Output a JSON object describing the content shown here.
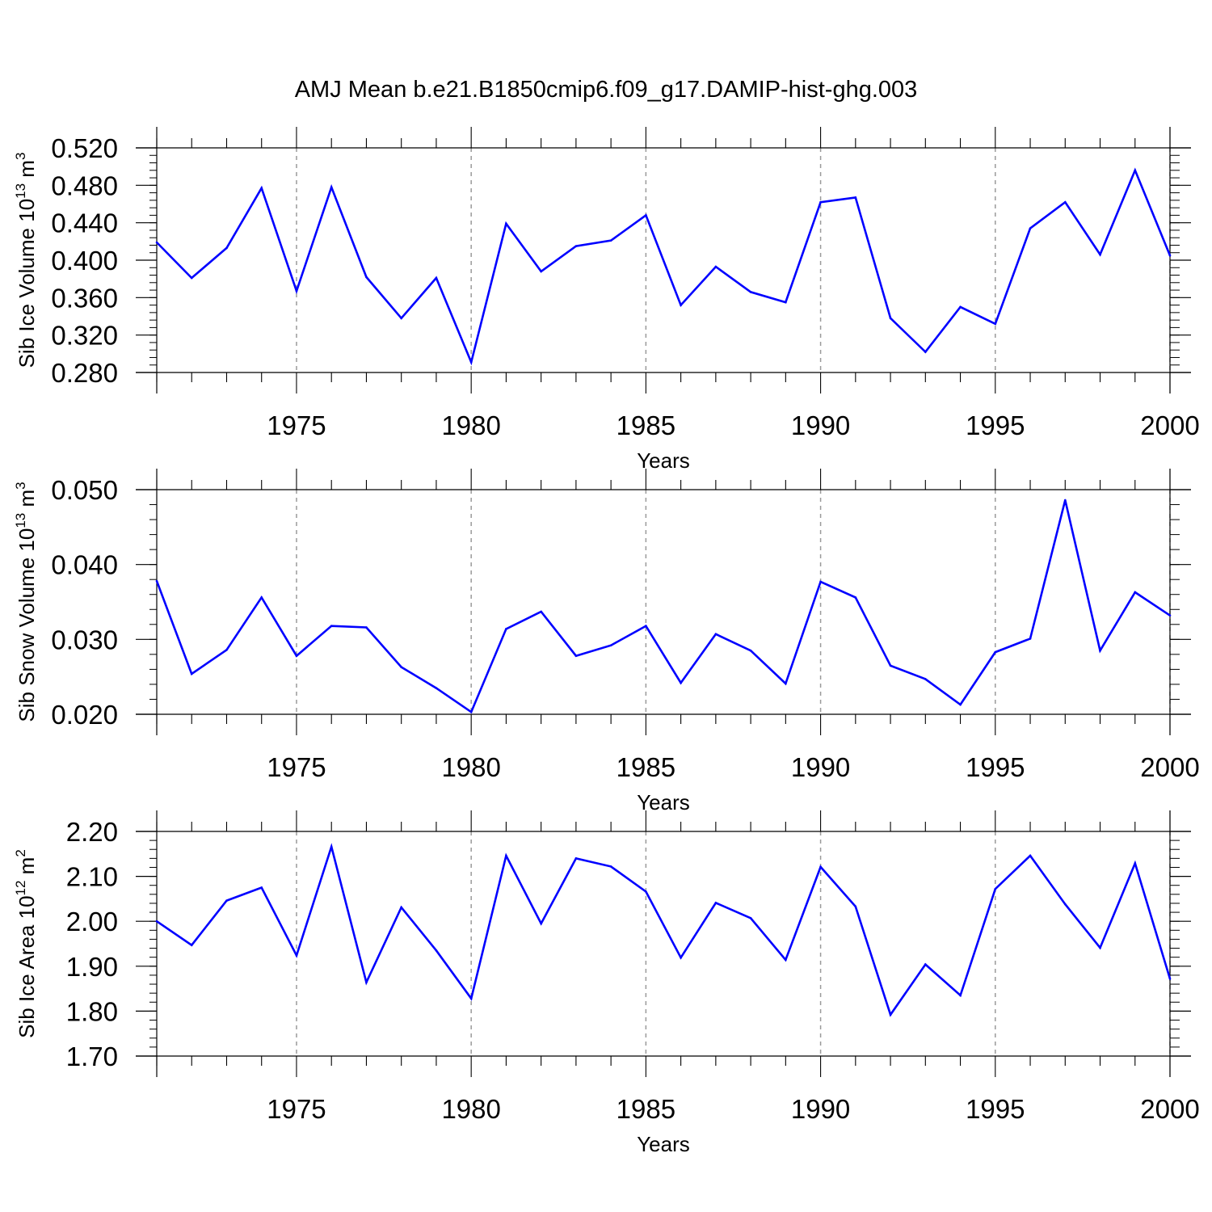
{
  "title": "AMJ Mean b.e21.B1850cmip6.f09_g17.DAMIP-hist-ghg.003",
  "chart_data": [
    {
      "type": "line",
      "ylabel": {
        "main": "Sib Ice Volume 10",
        "sup": "13",
        "unit": " m",
        "unit_sup": "3"
      },
      "xlabel": "Years",
      "xlim": [
        1971,
        2000
      ],
      "ylim": [
        0.28,
        0.52
      ],
      "yticks": [
        "0.280",
        "0.320",
        "0.360",
        "0.400",
        "0.440",
        "0.480",
        "0.520"
      ],
      "xticks": [
        "1975",
        "1980",
        "1985",
        "1990",
        "1995",
        "2000"
      ],
      "ytick_values": [
        0.28,
        0.32,
        0.36,
        0.4,
        0.44,
        0.48,
        0.52
      ],
      "yminor_step": 0.008,
      "line_color": "#0000ff",
      "x": [
        1971,
        1972,
        1973,
        1974,
        1975,
        1976,
        1977,
        1978,
        1979,
        1980,
        1981,
        1982,
        1983,
        1984,
        1985,
        1986,
        1987,
        1988,
        1989,
        1990,
        1991,
        1992,
        1993,
        1994,
        1995,
        1996,
        1997,
        1998,
        1999,
        2000
      ],
      "y": [
        0.419,
        0.381,
        0.413,
        0.477,
        0.367,
        0.478,
        0.382,
        0.338,
        0.381,
        0.291,
        0.439,
        0.388,
        0.415,
        0.421,
        0.448,
        0.352,
        0.393,
        0.366,
        0.355,
        0.462,
        0.467,
        0.338,
        0.302,
        0.35,
        0.332,
        0.434,
        0.462,
        0.406,
        0.496,
        0.405
      ]
    },
    {
      "type": "line",
      "ylabel": {
        "main": "Sib Snow Volume 10",
        "sup": "13",
        "unit": " m",
        "unit_sup": "3"
      },
      "xlabel": "Years",
      "xlim": [
        1971,
        2000
      ],
      "ylim": [
        0.02,
        0.05
      ],
      "yticks": [
        "0.020",
        "0.030",
        "0.040",
        "0.050"
      ],
      "xticks": [
        "1975",
        "1980",
        "1985",
        "1990",
        "1995",
        "2000"
      ],
      "ytick_values": [
        0.02,
        0.03,
        0.04,
        0.05
      ],
      "yminor_step": 0.002,
      "line_color": "#0000ff",
      "x": [
        1971,
        1972,
        1973,
        1974,
        1975,
        1976,
        1977,
        1978,
        1979,
        1980,
        1981,
        1982,
        1983,
        1984,
        1985,
        1986,
        1987,
        1988,
        1989,
        1990,
        1991,
        1992,
        1993,
        1994,
        1995,
        1996,
        1997,
        1998,
        1999,
        2000
      ],
      "y": [
        0.0378,
        0.0254,
        0.0286,
        0.0356,
        0.0278,
        0.0318,
        0.0316,
        0.0263,
        0.0235,
        0.0203,
        0.0314,
        0.0337,
        0.0278,
        0.0292,
        0.0318,
        0.0242,
        0.0307,
        0.0285,
        0.0241,
        0.0377,
        0.0356,
        0.0265,
        0.0247,
        0.0213,
        0.0283,
        0.0301,
        0.0486,
        0.0285,
        0.0363,
        0.0332
      ]
    },
    {
      "type": "line",
      "ylabel": {
        "main": "Sib Ice Area 10",
        "sup": "12",
        "unit": " m",
        "unit_sup": "2"
      },
      "xlabel": "Years",
      "xlim": [
        1971,
        2000
      ],
      "ylim": [
        1.7,
        2.2
      ],
      "yticks": [
        "1.70",
        "1.80",
        "1.90",
        "2.00",
        "2.10",
        "2.20"
      ],
      "xticks": [
        "1975",
        "1980",
        "1985",
        "1990",
        "1995",
        "2000"
      ],
      "ytick_values": [
        1.7,
        1.8,
        1.9,
        2.0,
        2.1,
        2.2
      ],
      "yminor_step": 0.02,
      "line_color": "#0000ff",
      "x": [
        1971,
        1972,
        1973,
        1974,
        1975,
        1976,
        1977,
        1978,
        1979,
        1980,
        1981,
        1982,
        1983,
        1984,
        1985,
        1986,
        1987,
        1988,
        1989,
        1990,
        1991,
        1992,
        1993,
        1994,
        1995,
        1996,
        1997,
        1998,
        1999,
        2000
      ],
      "y": [
        2.0,
        1.947,
        2.046,
        2.075,
        1.924,
        2.166,
        1.864,
        2.031,
        1.935,
        1.828,
        2.146,
        1.995,
        2.14,
        2.122,
        2.066,
        1.919,
        2.041,
        2.007,
        1.914,
        2.121,
        2.033,
        1.792,
        1.904,
        1.835,
        2.072,
        2.146,
        2.038,
        1.941,
        2.129,
        1.872
      ]
    }
  ]
}
